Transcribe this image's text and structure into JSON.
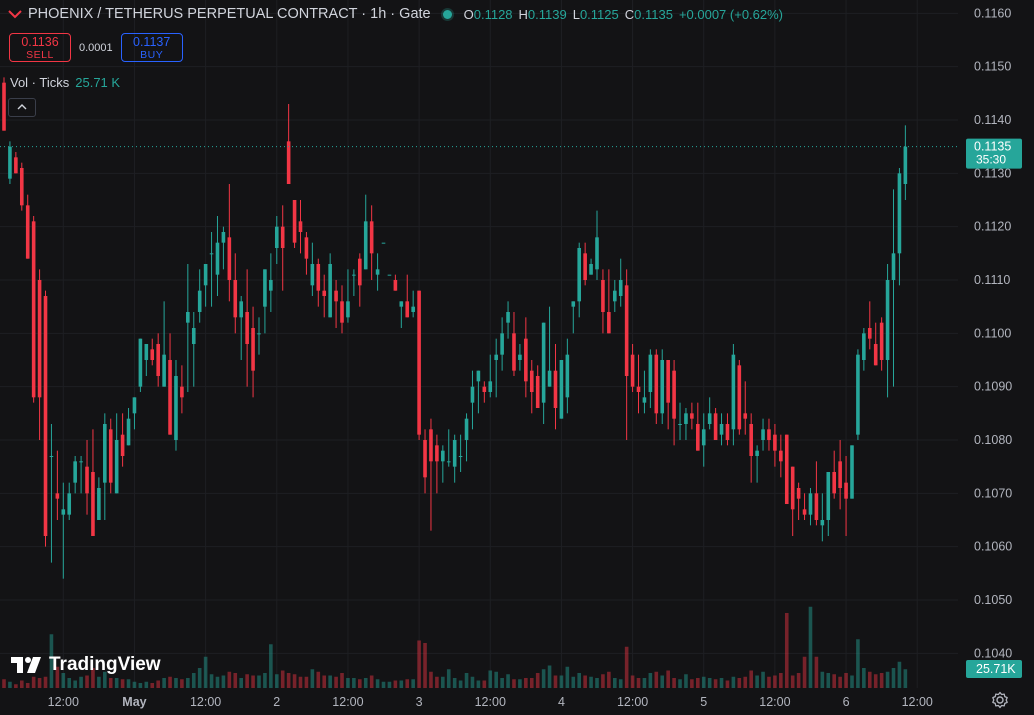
{
  "header": {
    "symbol": "PHOENIX / TETHERUS PERPETUAL CONTRACT · 1h · Gate",
    "ohlc": {
      "o_label": "O",
      "o": "0.1128",
      "h_label": "H",
      "h": "0.1139",
      "l_label": "L",
      "l": "0.1125",
      "c_label": "C",
      "c": "0.1135",
      "change": "+0.0007 (+0.62%)"
    }
  },
  "trade": {
    "sell_price": "0.1136",
    "sell_label": "SELL",
    "spread": "0.0001",
    "buy_price": "0.1137",
    "buy_label": "BUY"
  },
  "volume": {
    "label": "Vol · Ticks",
    "value": "25.71 K"
  },
  "logo_text": "TradingView",
  "icons": [
    "chevron-up-icon",
    "gear-icon",
    "tradingview-logo",
    "symbol-logo",
    "live-dot"
  ],
  "colors": {
    "background": "#131315",
    "up": "#26a69a",
    "down": "#f23645",
    "text": "#d1d4dc",
    "axis_text": "#b2b5be",
    "grid": "#1e1f23",
    "buy": "#2962ff"
  },
  "chart_data": {
    "type": "candlestick",
    "interval": "1h",
    "price_axis": {
      "ylim": [
        0.10335,
        0.11625
      ],
      "ticks": [
        "0.1160",
        "0.1150",
        "0.1140",
        "0.1130",
        "0.1120",
        "0.1110",
        "0.1100",
        "0.1090",
        "0.1080",
        "0.1070",
        "0.1060",
        "0.1050",
        "0.1040"
      ]
    },
    "time_axis": {
      "ticks": [
        {
          "label": "12:00",
          "index": 10
        },
        {
          "label": "May",
          "index": 22
        },
        {
          "label": "12:00",
          "index": 34
        },
        {
          "label": "2",
          "index": 46
        },
        {
          "label": "12:00",
          "index": 58
        },
        {
          "label": "3",
          "index": 70
        },
        {
          "label": "12:00",
          "index": 82
        },
        {
          "label": "4",
          "index": 94
        },
        {
          "label": "12:00",
          "index": 106
        },
        {
          "label": "5",
          "index": 118
        },
        {
          "label": "12:00",
          "index": 130
        },
        {
          "label": "6",
          "index": 142
        },
        {
          "label": "12:00",
          "index": 154
        }
      ]
    },
    "last_price": "0.1135",
    "countdown": "35:30",
    "volume_last": "25.71K",
    "volume_max": 8.0,
    "candles": [
      [
        0.1147,
        0.1148,
        0.1138,
        0.1138,
        0.7
      ],
      [
        0.1129,
        0.1136,
        0.1128,
        0.1135,
        0.5
      ],
      [
        0.1133,
        0.1134,
        0.113,
        0.113,
        0.3
      ],
      [
        0.1131,
        0.1132,
        0.1123,
        0.1124,
        0.6
      ],
      [
        0.1124,
        0.1126,
        0.1114,
        0.1114,
        0.4
      ],
      [
        0.1121,
        0.1122,
        0.1087,
        0.1088,
        0.9
      ],
      [
        0.111,
        0.1112,
        0.108,
        0.1088,
        0.8
      ],
      [
        0.1107,
        0.1108,
        0.106,
        0.1062,
        0.9
      ],
      [
        0.1077,
        0.1083,
        0.1057,
        0.1077,
        4.3
      ],
      [
        0.107,
        0.1078,
        0.1065,
        0.1069,
        1.7
      ],
      [
        0.1066,
        0.1072,
        0.1054,
        0.1067,
        1.2
      ],
      [
        0.1066,
        0.1072,
        0.1065,
        0.107,
        0.8
      ],
      [
        0.1072,
        0.1077,
        0.107,
        0.1076,
        0.6
      ],
      [
        0.1076,
        0.1077,
        0.107,
        0.1076,
        0.9
      ],
      [
        0.1075,
        0.108,
        0.1066,
        0.107,
        1.0
      ],
      [
        0.1074,
        0.1082,
        0.1062,
        0.1062,
        1.6
      ],
      [
        0.1065,
        0.1073,
        0.1065,
        0.1071,
        0.9
      ],
      [
        0.1072,
        0.1085,
        0.1065,
        0.1083,
        1.3
      ],
      [
        0.1082,
        0.1084,
        0.107,
        0.1072,
        0.8
      ],
      [
        0.107,
        0.1085,
        0.107,
        0.108,
        0.8
      ],
      [
        0.1081,
        0.1085,
        0.1075,
        0.1077,
        0.7
      ],
      [
        0.1079,
        0.1086,
        0.1079,
        0.1084,
        0.7
      ],
      [
        0.1085,
        0.1088,
        0.1082,
        0.1088,
        0.5
      ],
      [
        0.109,
        0.1099,
        0.1089,
        0.1099,
        0.4
      ],
      [
        0.1095,
        0.1098,
        0.1092,
        0.1098,
        0.5
      ],
      [
        0.1097,
        0.1099,
        0.1094,
        0.1095,
        0.4
      ],
      [
        0.1098,
        0.11,
        0.109,
        0.1092,
        0.6
      ],
      [
        0.109,
        0.1106,
        0.109,
        0.1096,
        0.8
      ],
      [
        0.1095,
        0.11,
        0.1081,
        0.1081,
        0.9
      ],
      [
        0.108,
        0.1095,
        0.1078,
        0.1092,
        0.8
      ],
      [
        0.109,
        0.1094,
        0.1085,
        0.1088,
        0.7
      ],
      [
        0.1102,
        0.1113,
        0.1089,
        0.1104,
        0.8
      ],
      [
        0.1098,
        0.1104,
        0.109,
        0.1101,
        1.2
      ],
      [
        0.1104,
        0.1112,
        0.1102,
        0.1108,
        1.6
      ],
      [
        0.1109,
        0.1113,
        0.1105,
        0.1113,
        2.5
      ],
      [
        0.1115,
        0.1119,
        0.1105,
        0.1115,
        1.1
      ],
      [
        0.1111,
        0.1122,
        0.1107,
        0.1117,
        0.9
      ],
      [
        0.1117,
        0.112,
        0.1112,
        0.1119,
        1.0
      ],
      [
        0.1118,
        0.1128,
        0.1106,
        0.111,
        1.3
      ],
      [
        0.111,
        0.1115,
        0.11,
        0.1103,
        1.2
      ],
      [
        0.1103,
        0.1107,
        0.1095,
        0.1106,
        0.8
      ],
      [
        0.1104,
        0.1112,
        0.109,
        0.1098,
        1.1
      ],
      [
        0.1101,
        0.1105,
        0.1088,
        0.1093,
        1.0
      ],
      [
        0.11,
        0.1103,
        0.1096,
        0.11,
        1.0
      ],
      [
        0.1105,
        0.1112,
        0.11,
        0.1112,
        1.2
      ],
      [
        0.1108,
        0.1115,
        0.1104,
        0.111,
        3.5
      ],
      [
        0.1116,
        0.1122,
        0.1113,
        0.112,
        1.1
      ],
      [
        0.112,
        0.1124,
        0.1108,
        0.1116,
        1.4
      ],
      [
        0.1136,
        0.1143,
        0.1128,
        0.1128,
        1.2
      ],
      [
        0.1125,
        0.1125,
        0.1116,
        0.1117,
        1.1
      ],
      [
        0.1121,
        0.1125,
        0.1115,
        0.1119,
        0.9
      ],
      [
        0.1118,
        0.1119,
        0.1111,
        0.1114,
        0.9
      ],
      [
        0.1109,
        0.1117,
        0.1107,
        0.1113,
        1.5
      ],
      [
        0.1113,
        0.1114,
        0.1105,
        0.1108,
        1.3
      ],
      [
        0.1108,
        0.1111,
        0.1103,
        0.1107,
        1.0
      ],
      [
        0.1103,
        0.1115,
        0.1103,
        0.1113,
        1.0
      ],
      [
        0.1108,
        0.111,
        0.1101,
        0.1106,
        0.9
      ],
      [
        0.1106,
        0.1109,
        0.11,
        0.1102,
        1.2
      ],
      [
        0.1103,
        0.1112,
        0.1102,
        0.1106,
        0.8
      ],
      [
        0.1111,
        0.1112,
        0.1107,
        0.1111,
        0.8
      ],
      [
        0.1114,
        0.1115,
        0.1105,
        0.1109,
        0.7
      ],
      [
        0.1112,
        0.1126,
        0.1112,
        0.1121,
        0.8
      ],
      [
        0.1121,
        0.1124,
        0.111,
        0.1115,
        1.0
      ],
      [
        0.1111,
        0.1115,
        0.1108,
        0.1112,
        0.7
      ],
      [
        0.1117,
        0.1117,
        0.1117,
        0.1117,
        0.5
      ],
      [
        0.1111,
        0.1111,
        0.1111,
        0.1111,
        0.5
      ],
      [
        0.111,
        0.1111,
        0.1108,
        0.1108,
        0.6
      ],
      [
        0.1105,
        0.1106,
        0.1101,
        0.1106,
        0.6
      ],
      [
        0.1106,
        0.1111,
        0.1103,
        0.1103,
        0.7
      ],
      [
        0.1104,
        0.1108,
        0.1103,
        0.1105,
        0.7
      ],
      [
        0.1108,
        0.1108,
        0.108,
        0.1081,
        3.8
      ],
      [
        0.108,
        0.1082,
        0.107,
        0.1073,
        3.6
      ],
      [
        0.1082,
        0.1084,
        0.1063,
        0.1076,
        1.3
      ],
      [
        0.1079,
        0.1081,
        0.107,
        0.1076,
        0.9
      ],
      [
        0.1076,
        0.1079,
        0.1072,
        0.1078,
        0.9
      ],
      [
        0.1076,
        0.1082,
        0.1075,
        0.1076,
        1.5
      ],
      [
        0.1075,
        0.1081,
        0.1072,
        0.108,
        0.8
      ],
      [
        0.1077,
        0.1081,
        0.1074,
        0.1077,
        0.6
      ],
      [
        0.108,
        0.1085,
        0.1076,
        0.1084,
        1.2
      ],
      [
        0.1087,
        0.1093,
        0.1082,
        0.109,
        0.9
      ],
      [
        0.1091,
        0.1093,
        0.1085,
        0.1093,
        0.6
      ],
      [
        0.109,
        0.1091,
        0.1087,
        0.1089,
        0.6
      ],
      [
        0.1089,
        0.1096,
        0.1088,
        0.1091,
        1.4
      ],
      [
        0.1095,
        0.1099,
        0.1088,
        0.1096,
        1.3
      ],
      [
        0.1096,
        0.1103,
        0.1093,
        0.11,
        0.8
      ],
      [
        0.1102,
        0.1106,
        0.1099,
        0.1104,
        1.1
      ],
      [
        0.11,
        0.1104,
        0.1092,
        0.1093,
        0.7
      ],
      [
        0.1095,
        0.1098,
        0.1093,
        0.1096,
        0.7
      ],
      [
        0.1099,
        0.1103,
        0.1088,
        0.1091,
        0.8
      ],
      [
        0.1093,
        0.1095,
        0.1085,
        0.1089,
        0.8
      ],
      [
        0.1092,
        0.1094,
        0.1086,
        0.1086,
        1.2
      ],
      [
        0.1087,
        0.1102,
        0.1083,
        0.1102,
        1.5
      ],
      [
        0.109,
        0.1105,
        0.109,
        0.1093,
        1.8
      ],
      [
        0.1093,
        0.1098,
        0.1082,
        0.1086,
        1.0
      ],
      [
        0.1084,
        0.1095,
        0.1084,
        0.1095,
        1.0
      ],
      [
        0.1088,
        0.1099,
        0.1085,
        0.1096,
        1.7
      ],
      [
        0.1105,
        0.1106,
        0.11,
        0.1106,
        0.9
      ],
      [
        0.1106,
        0.1117,
        0.1103,
        0.1116,
        1.2
      ],
      [
        0.1115,
        0.1117,
        0.1109,
        0.111,
        1.0
      ],
      [
        0.1111,
        0.1114,
        0.1111,
        0.1113,
        0.9
      ],
      [
        0.1112,
        0.1123,
        0.111,
        0.1118,
        0.8
      ],
      [
        0.111,
        0.1112,
        0.11,
        0.1104,
        1.1
      ],
      [
        0.1104,
        0.1112,
        0.11,
        0.11,
        1.3
      ],
      [
        0.1106,
        0.111,
        0.1104,
        0.1108,
        0.8
      ],
      [
        0.1107,
        0.1114,
        0.1105,
        0.111,
        0.7
      ],
      [
        0.1109,
        0.1112,
        0.108,
        0.1092,
        3.3
      ],
      [
        0.1096,
        0.1098,
        0.1089,
        0.109,
        1.0
      ],
      [
        0.109,
        0.1096,
        0.1085,
        0.1089,
        0.8
      ],
      [
        0.1087,
        0.1093,
        0.1085,
        0.1088,
        0.8
      ],
      [
        0.1089,
        0.1097,
        0.1086,
        0.1096,
        1.2
      ],
      [
        0.1096,
        0.1097,
        0.1083,
        0.1085,
        1.3
      ],
      [
        0.1085,
        0.1097,
        0.1083,
        0.1095,
        1.0
      ],
      [
        0.1095,
        0.1095,
        0.1082,
        0.1087,
        1.4
      ],
      [
        0.1093,
        0.1095,
        0.1079,
        0.1084,
        0.8
      ],
      [
        0.1083,
        0.1087,
        0.108,
        0.1083,
        0.7
      ],
      [
        0.1083,
        0.1086,
        0.108,
        0.1085,
        1.1
      ],
      [
        0.1085,
        0.1087,
        0.1082,
        0.1084,
        0.7
      ],
      [
        0.1083,
        0.1087,
        0.1078,
        0.1078,
        0.8
      ],
      [
        0.1079,
        0.1085,
        0.1075,
        0.1082,
        0.9
      ],
      [
        0.1083,
        0.1088,
        0.1082,
        0.1085,
        0.8
      ],
      [
        0.1085,
        0.1086,
        0.108,
        0.108,
        0.7
      ],
      [
        0.1081,
        0.1085,
        0.1079,
        0.1083,
        0.8
      ],
      [
        0.1083,
        0.1085,
        0.1079,
        0.108,
        0.6
      ],
      [
        0.1082,
        0.1098,
        0.1079,
        0.1096,
        0.9
      ],
      [
        0.1094,
        0.1095,
        0.1081,
        0.1082,
        0.8
      ],
      [
        0.1085,
        0.1091,
        0.1081,
        0.1084,
        0.9
      ],
      [
        0.1083,
        0.1085,
        0.1072,
        0.1077,
        1.4
      ],
      [
        0.1077,
        0.1079,
        0.1072,
        0.1078,
        1.0
      ],
      [
        0.108,
        0.1084,
        0.1078,
        0.1082,
        1.3
      ],
      [
        0.1082,
        0.1084,
        0.1078,
        0.108,
        0.9
      ],
      [
        0.1081,
        0.1083,
        0.1075,
        0.1078,
        1.0
      ],
      [
        0.1078,
        0.1081,
        0.1073,
        0.1076,
        1.2
      ],
      [
        0.1081,
        0.1081,
        0.1068,
        0.1068,
        6.0
      ],
      [
        0.1075,
        0.1075,
        0.1062,
        0.1067,
        1.0
      ],
      [
        0.1071,
        0.1072,
        0.1065,
        0.1069,
        1.2
      ],
      [
        0.1067,
        0.107,
        0.1065,
        0.1066,
        2.5
      ],
      [
        0.1066,
        0.1071,
        0.1064,
        0.107,
        6.5
      ],
      [
        0.107,
        0.1076,
        0.1064,
        0.1065,
        2.5
      ],
      [
        0.1064,
        0.107,
        0.1061,
        0.1065,
        1.3
      ],
      [
        0.1065,
        0.1074,
        0.1062,
        0.1074,
        1.2
      ],
      [
        0.1074,
        0.1078,
        0.1069,
        0.107,
        1.1
      ],
      [
        0.1076,
        0.108,
        0.1067,
        0.1071,
        0.9
      ],
      [
        0.1072,
        0.1077,
        0.1062,
        0.1069,
        1.2
      ],
      [
        0.1069,
        0.1079,
        0.1069,
        0.1079,
        1.0
      ],
      [
        0.1081,
        0.1097,
        0.108,
        0.1096,
        3.9
      ],
      [
        0.1095,
        0.1101,
        0.1093,
        0.11,
        1.6
      ],
      [
        0.1101,
        0.1106,
        0.1097,
        0.1099,
        1.3
      ],
      [
        0.1098,
        0.1102,
        0.1094,
        0.1094,
        1.1
      ],
      [
        0.1102,
        0.1103,
        0.1093,
        0.1095,
        1.2
      ],
      [
        0.1095,
        0.1113,
        0.1088,
        0.111,
        1.3
      ],
      [
        0.111,
        0.1127,
        0.109,
        0.1115,
        1.6
      ],
      [
        0.1115,
        0.1131,
        0.1109,
        0.113,
        2.1
      ],
      [
        0.1128,
        0.1139,
        0.1125,
        0.1135,
        1.5
      ]
    ]
  }
}
